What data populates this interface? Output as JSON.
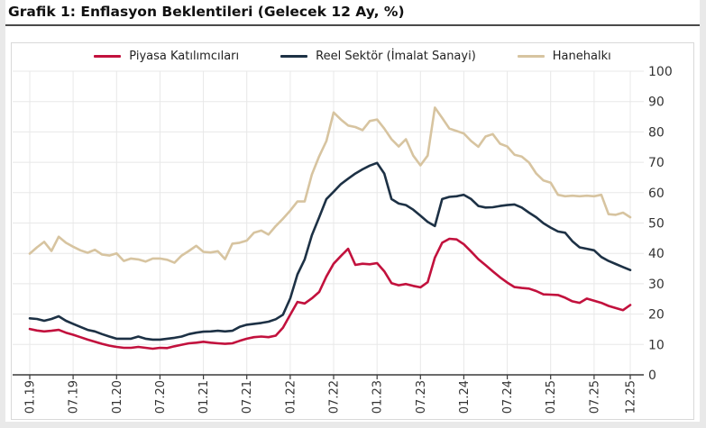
{
  "title": "Grafik 1: Enflasyon Beklentileri (Gelecek 12 Ay, %)",
  "chart_data": {
    "type": "line",
    "x_frequency": "monthly",
    "x_start": "01.19",
    "x_end": "12.25",
    "months": [
      "01.19",
      "02.19",
      "03.19",
      "04.19",
      "05.19",
      "06.19",
      "07.19",
      "08.19",
      "09.19",
      "10.19",
      "11.19",
      "12.19",
      "01.20",
      "02.20",
      "03.20",
      "04.20",
      "05.20",
      "06.20",
      "07.20",
      "08.20",
      "09.20",
      "10.20",
      "11.20",
      "12.20",
      "01.21",
      "02.21",
      "03.21",
      "04.21",
      "05.21",
      "06.21",
      "07.21",
      "08.21",
      "09.21",
      "10.21",
      "11.21",
      "12.21",
      "01.22",
      "02.22",
      "03.22",
      "04.22",
      "05.22",
      "06.22",
      "07.22",
      "08.22",
      "09.22",
      "10.22",
      "11.22",
      "12.22",
      "01.23",
      "02.23",
      "03.23",
      "04.23",
      "05.23",
      "06.23",
      "07.23",
      "08.23",
      "09.23",
      "10.23",
      "11.23",
      "12.23",
      "01.24",
      "02.24",
      "03.24",
      "04.24",
      "05.24",
      "06.24",
      "07.24",
      "08.24",
      "09.24",
      "10.24",
      "11.24",
      "12.24",
      "01.25",
      "02.25",
      "03.25",
      "04.25",
      "05.25",
      "06.25",
      "07.25",
      "08.25",
      "09.25",
      "10.25",
      "11.25",
      "12.25"
    ],
    "x_tick_labels": [
      "01.19",
      "07.19",
      "01.20",
      "07.20",
      "01.21",
      "07.21",
      "01.22",
      "07.22",
      "01.23",
      "07.23",
      "01.24",
      "07.24",
      "01.25",
      "07.25",
      "12.25"
    ],
    "tick_indices": [
      0,
      6,
      12,
      18,
      24,
      30,
      36,
      42,
      48,
      54,
      60,
      66,
      72,
      78,
      83
    ],
    "y_ticks": [
      0,
      10,
      20,
      30,
      40,
      50,
      60,
      70,
      80,
      90,
      100
    ],
    "ylim": [
      0,
      100
    ],
    "y_axis_side": "right",
    "grid": true,
    "legend_position": "top-center",
    "grid_color": "#e8e8e8",
    "axis_color": "#3a3a3a",
    "tick_label_color": "#333333",
    "series": [
      {
        "id": "piyasa",
        "name": "Piyasa Katılımcıları",
        "color": "#c2113d",
        "values": [
          15.1,
          14.6,
          14.3,
          14.5,
          14.8,
          13.9,
          13.2,
          12.4,
          11.6,
          10.9,
          10.2,
          9.6,
          9.2,
          8.9,
          8.9,
          9.2,
          8.9,
          8.6,
          8.9,
          8.8,
          9.4,
          9.9,
          10.4,
          10.6,
          10.9,
          10.6,
          10.4,
          10.2,
          10.4,
          11.2,
          11.9,
          12.4,
          12.6,
          12.4,
          12.9,
          15.5,
          19.8,
          24.0,
          23.5,
          25.2,
          27.3,
          32.4,
          36.6,
          39.1,
          41.5,
          36.2,
          36.6,
          36.4,
          36.8,
          34.1,
          30.2,
          29.5,
          29.9,
          29.3,
          28.8,
          30.5,
          38.6,
          43.5,
          44.8,
          44.6,
          43.0,
          40.6,
          38.1,
          36.1,
          34.1,
          32.1,
          30.4,
          28.9,
          28.6,
          28.4,
          27.6,
          26.5,
          26.4,
          26.3,
          25.4,
          24.2,
          23.7,
          25.1,
          24.4,
          23.7,
          22.7,
          22.0,
          21.3,
          23.0
        ]
      },
      {
        "id": "reel-sektor",
        "name": "Reel Sektör (İmalat Sanayi)",
        "color": "#1d3145",
        "values": [
          18.6,
          18.4,
          17.8,
          18.4,
          19.3,
          17.8,
          16.8,
          15.8,
          14.8,
          14.3,
          13.4,
          12.6,
          11.9,
          11.9,
          11.9,
          12.6,
          11.9,
          11.6,
          11.6,
          11.9,
          12.2,
          12.6,
          13.4,
          13.9,
          14.2,
          14.3,
          14.5,
          14.3,
          14.5,
          15.8,
          16.5,
          16.8,
          17.1,
          17.5,
          18.3,
          19.8,
          25.2,
          33.1,
          38.0,
          46.0,
          51.9,
          57.9,
          60.3,
          62.8,
          64.6,
          66.3,
          67.7,
          68.9,
          69.8,
          66.3,
          57.9,
          56.4,
          55.9,
          54.4,
          52.4,
          50.4,
          49.0,
          57.9,
          58.6,
          58.8,
          59.3,
          57.9,
          55.6,
          55.1,
          55.2,
          55.6,
          55.9,
          56.1,
          55.1,
          53.4,
          51.9,
          49.9,
          48.5,
          47.2,
          46.8,
          44.0,
          42.0,
          41.5,
          41.0,
          38.8,
          37.5,
          36.5,
          35.5,
          34.5
        ]
      },
      {
        "id": "hanehalki",
        "name": "Hanehalkı",
        "color": "#d7c4a0",
        "values": [
          39.9,
          42.0,
          43.8,
          40.8,
          45.5,
          43.5,
          42.2,
          41.0,
          40.2,
          41.2,
          39.6,
          39.3,
          40.0,
          37.5,
          38.3,
          38.0,
          37.3,
          38.3,
          38.3,
          37.9,
          36.9,
          39.3,
          40.8,
          42.5,
          40.5,
          40.3,
          40.7,
          38.1,
          43.2,
          43.5,
          44.2,
          46.8,
          47.5,
          46.2,
          49.0,
          51.4,
          54.1,
          57.1,
          57.1,
          66.0,
          72.0,
          77.0,
          86.4,
          84.1,
          82.1,
          81.6,
          80.6,
          83.6,
          84.1,
          81.1,
          77.6,
          75.2,
          77.6,
          72.2,
          69.0,
          72.2,
          88.0,
          84.6,
          81.1,
          80.3,
          79.5,
          77.0,
          75.1,
          78.5,
          79.3,
          76.1,
          75.2,
          72.5,
          71.9,
          69.9,
          66.3,
          64.0,
          63.3,
          59.3,
          58.8,
          59.0,
          58.8,
          59.0,
          58.8,
          59.3,
          52.9,
          52.7,
          53.4,
          51.9
        ]
      }
    ]
  }
}
